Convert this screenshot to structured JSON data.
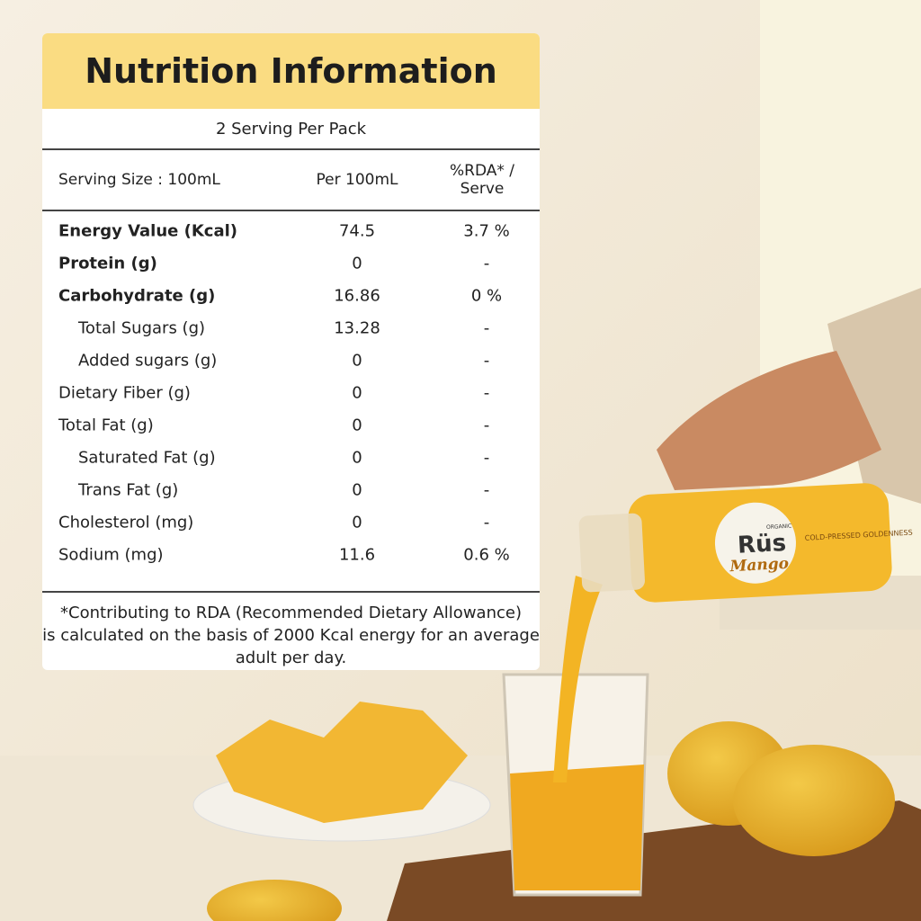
{
  "panel": {
    "title": "Nutrition Information",
    "servings": "2 Serving Per Pack",
    "columns": [
      "Serving Size : 100mL",
      "Per 100mL",
      "%RDA* / Serve"
    ],
    "rows": [
      {
        "label": "Energy Value (Kcal)",
        "per_100ml": "74.5",
        "rda": "3.7 %",
        "bold": true
      },
      {
        "label": "Protein (g)",
        "per_100ml": "0",
        "rda": "-",
        "bold": true
      },
      {
        "label": "Carbohydrate (g)",
        "per_100ml": "16.86",
        "rda": "0 %",
        "bold": true
      },
      {
        "label": "Total Sugars (g)",
        "per_100ml": "13.28",
        "rda": "-",
        "indent": true
      },
      {
        "label": "Added sugars (g)",
        "per_100ml": "0",
        "rda": "-",
        "indent": true
      },
      {
        "label": "Dietary Fiber (g)",
        "per_100ml": "0",
        "rda": "-"
      },
      {
        "label": "Total Fat (g)",
        "per_100ml": "0",
        "rda": "-"
      },
      {
        "label": "Saturated Fat (g)",
        "per_100ml": "0",
        "rda": "-",
        "indent": true
      },
      {
        "label": "Trans Fat (g)",
        "per_100ml": "0",
        "rda": "-",
        "indent": true
      },
      {
        "label": "Cholesterol (mg)",
        "per_100ml": "0",
        "rda": "-"
      },
      {
        "label": "Sodium (mg)",
        "per_100ml": "11.6",
        "rda": "0.6 %"
      }
    ],
    "footnote": [
      "*Contributing to RDA (Recommended Dietary Allowance)",
      "is calculated on the basis of 2000 Kcal energy for an average",
      "adult per day."
    ]
  },
  "bottle": {
    "brand": "Rüs",
    "sub_brand": "ORGANIC",
    "flavor": "Mango",
    "tagline": "COLD-PRESSED GOLDENNESS"
  }
}
